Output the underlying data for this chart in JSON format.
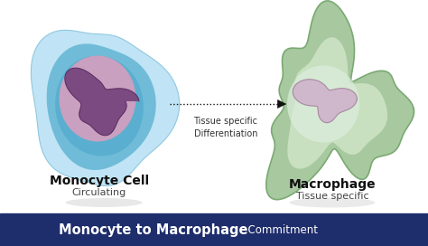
{
  "bg_color": "#ffffff",
  "footer_color": "#1e2d6b",
  "footer_text_bold": "Monocyte to Macrophage",
  "footer_text_regular": "  Commitment",
  "footer_text_color": "#ffffff",
  "arrow_label": "Tissue specific\nDifferentiation",
  "monocyte_label": "Monocyte Cell",
  "monocyte_sublabel": "Circulating",
  "macrophage_label": "Macrophage",
  "macrophage_sublabel": "Tissue specific",
  "mono_halo_color": "#c0e4f5",
  "mono_outer_color": "#70bcd8",
  "mono_cytoplasm_color": "#5aafd0",
  "mono_inner_color": "#4da8cc",
  "mono_nuc_pink": "#c9a0c0",
  "mono_nuc_purple": "#7a4a80",
  "macro_outer_color": "#a8c8a0",
  "macro_inner_color": "#c8e0c0",
  "macro_highlight_color": "#ddeedd",
  "macro_nuc_color": "#d0b8cc",
  "shadow_color": "#cccccc",
  "label_color": "#111111",
  "sublabel_color": "#444444",
  "arrow_color": "#111111",
  "arrow_label_color": "#333333"
}
